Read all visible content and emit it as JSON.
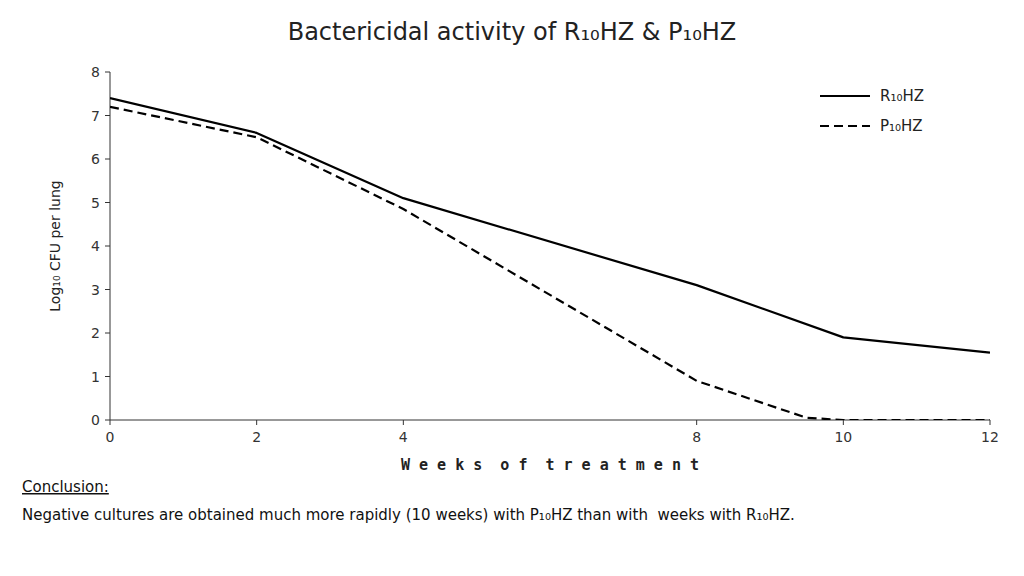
{
  "chart_data": {
    "type": "line",
    "title": "Bactericidal activity of R₁₀HZ & P₁₀HZ",
    "x_label": "W e e k s  o f  t r e a t m e n t",
    "y_label": "Log₁₀ CFU per lung",
    "series": [
      {
        "name": "R₁₀HZ",
        "color": "#000000",
        "line_style": "solid",
        "x": [
          0,
          2,
          4,
          8,
          10,
          12
        ],
        "values": [
          7.4,
          6.6,
          5.1,
          3.1,
          1.9,
          1.55
        ]
      },
      {
        "name": "P₁₀HZ",
        "color": "#000000",
        "line_style": "dashed",
        "x": [
          0,
          2,
          4,
          8,
          9.5,
          10,
          12
        ],
        "values": [
          7.2,
          6.5,
          4.85,
          0.9,
          0.05,
          0.0,
          0.0
        ]
      }
    ],
    "xlim": [
      0,
      12
    ],
    "ylim": [
      0,
      8
    ],
    "xticks": [
      0,
      2,
      4,
      8,
      10,
      12
    ],
    "yticks": [
      0,
      1,
      2,
      3,
      4,
      5,
      6,
      7,
      8
    ],
    "grid": false,
    "legend": "top-right",
    "annotations": [
      "Conclusion:",
      "Negative cultures are obtained much more rapidly (10 weeks) with P₁₀HZ than with  weeks with R₁₀HZ."
    ]
  }
}
